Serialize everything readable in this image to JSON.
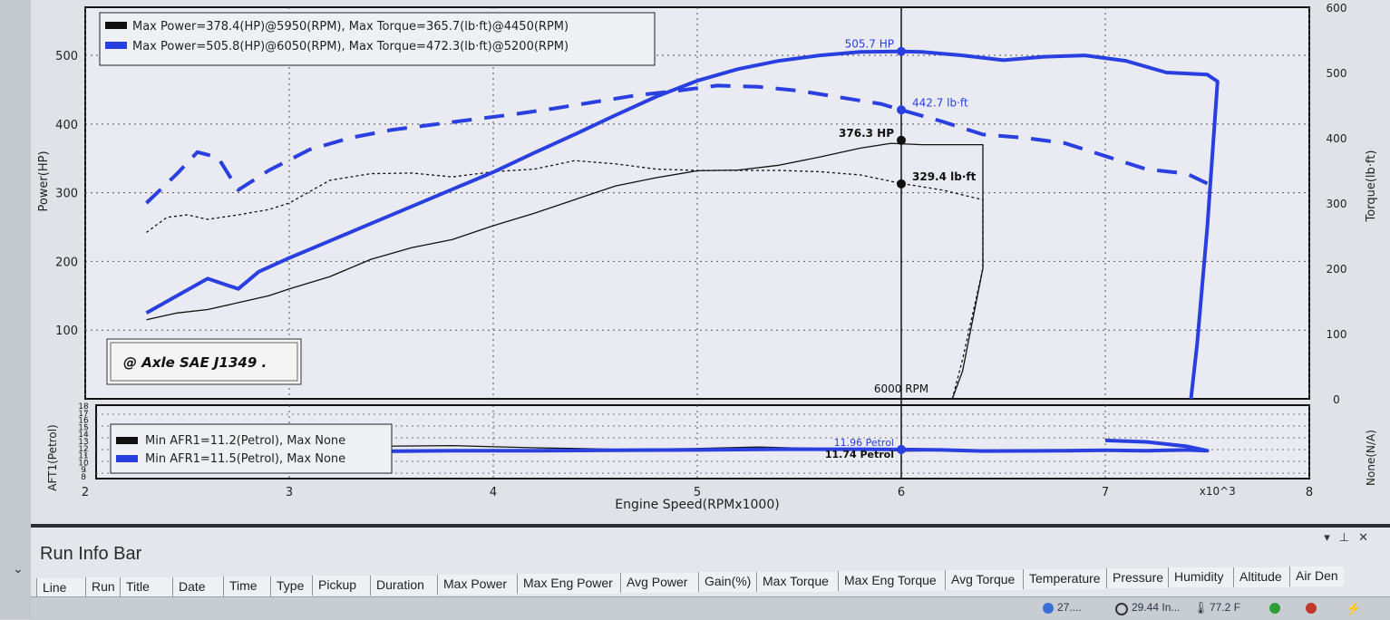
{
  "chart_data": {
    "type": "line",
    "xlabel": "Engine Speed(RPMx1000)",
    "x_multiplier_label": "x10^3",
    "xlim": [
      2,
      8
    ],
    "x_ticks": [
      "2",
      "3",
      "4",
      "5",
      "6",
      "7",
      "8"
    ],
    "main": {
      "ylabel_left": "Power(HP)",
      "ylabel_right": "Torque(lb·ft)",
      "ylim_left": [
        0,
        570
      ],
      "ylim_right": [
        0,
        600
      ],
      "yticks_left": [
        100,
        200,
        300,
        400,
        500
      ],
      "yticks_right": [
        0,
        100,
        200,
        300,
        400,
        500,
        600
      ],
      "legend": [
        {
          "text": "Max Power=378.4(HP)@5950(RPM), Max Torque=365.7(lb·ft)@4450(RPM)",
          "color": "#111111"
        },
        {
          "text": "Max Power=505.8(HP)@6050(RPM), Max Torque=472.3(lb·ft)@5200(RPM)",
          "color": "#2a3fe0"
        }
      ],
      "stamp": "@ Axle SAE J1349  .",
      "cursor_rpm": 6.0,
      "cursor_label": "6000 RPM",
      "annotations": [
        {
          "text": "505.7 HP",
          "color": "#2a3fe0"
        },
        {
          "text": "442.7 lb·ft",
          "color": "#2a3fe0"
        },
        {
          "text": "376.3 HP",
          "color": "#111111"
        },
        {
          "text": "329.4 lb·ft",
          "color": "#111111"
        }
      ],
      "series": [
        {
          "color": "#111111",
          "style": "solid",
          "axis": "left",
          "x": [
            2.3,
            2.45,
            2.6,
            2.75,
            2.9,
            3.0,
            3.2,
            3.4,
            3.6,
            3.8,
            4.0,
            4.2,
            4.4,
            4.6,
            4.8,
            5.0,
            5.2,
            5.4,
            5.6,
            5.8,
            5.95,
            6.1,
            6.3,
            6.4,
            6.4,
            6.3,
            6.25
          ],
          "y": [
            115,
            125,
            130,
            140,
            150,
            160,
            178,
            203,
            220,
            232,
            252,
            270,
            290,
            310,
            322,
            332,
            333,
            340,
            352,
            365,
            372,
            370,
            370,
            370,
            190,
            40,
            0
          ]
        },
        {
          "color": "#111111",
          "style": "dotted",
          "axis": "right",
          "x": [
            2.3,
            2.4,
            2.5,
            2.6,
            2.75,
            2.9,
            3.0,
            3.2,
            3.4,
            3.6,
            3.8,
            4.0,
            4.2,
            4.4,
            4.6,
            4.8,
            5.0,
            5.2,
            5.4,
            5.6,
            5.8,
            6.0,
            6.2,
            6.4,
            6.4,
            6.3,
            6.25
          ],
          "y": [
            255,
            278,
            282,
            275,
            282,
            290,
            300,
            335,
            345,
            346,
            340,
            348,
            352,
            365,
            360,
            352,
            350,
            350,
            350,
            348,
            343,
            330,
            320,
            305,
            200,
            60,
            0
          ]
        },
        {
          "color": "#2a3fe0",
          "style": "solid",
          "axis": "left",
          "x": [
            2.3,
            2.45,
            2.6,
            2.75,
            2.85,
            3.0,
            3.2,
            3.4,
            3.6,
            3.8,
            4.0,
            4.2,
            4.4,
            4.6,
            4.8,
            5.0,
            5.2,
            5.4,
            5.6,
            5.8,
            6.0,
            6.1,
            6.3,
            6.5,
            6.7,
            6.9,
            7.1,
            7.3,
            7.5,
            7.55,
            7.5,
            7.45,
            7.42
          ],
          "y": [
            125,
            150,
            175,
            160,
            185,
            205,
            230,
            255,
            280,
            305,
            330,
            358,
            385,
            413,
            440,
            463,
            480,
            492,
            500,
            505,
            505.7,
            505,
            500,
            493,
            498,
            500,
            492,
            475,
            472,
            462,
            250,
            80,
            0
          ]
        },
        {
          "color": "#2a3fe0",
          "style": "dashed",
          "axis": "right",
          "x": [
            2.3,
            2.45,
            2.55,
            2.65,
            2.75,
            2.9,
            3.1,
            3.3,
            3.5,
            3.7,
            3.9,
            4.1,
            4.3,
            4.5,
            4.7,
            4.9,
            5.1,
            5.3,
            5.5,
            5.7,
            5.9,
            6.0,
            6.2,
            6.4,
            6.6,
            6.8,
            7.0,
            7.2,
            7.4,
            7.5
          ],
          "y": [
            300,
            345,
            378,
            370,
            320,
            350,
            382,
            400,
            412,
            420,
            428,
            436,
            445,
            455,
            465,
            472,
            480,
            478,
            472,
            462,
            452,
            442.7,
            425,
            405,
            400,
            392,
            372,
            352,
            345,
            330
          ]
        }
      ]
    },
    "afr": {
      "ylabel_left": "AFT1(Petrol)",
      "ylabel_right": "None(N/A)",
      "yticks_left": [
        "8",
        "9",
        "10",
        "11",
        "12",
        "13",
        "14",
        "15",
        "16",
        "17",
        "18"
      ],
      "legend": [
        {
          "text": "Min AFR1=11.2(Petrol), Max None",
          "color": "#111111"
        },
        {
          "text": "Min AFR1=11.5(Petrol), Max None",
          "color": "#2a3fe0"
        }
      ],
      "annotations": [
        {
          "text": "11.96 Petrol",
          "color": "#2a3fe0"
        },
        {
          "text": "11.74 Petrol",
          "color": "#111111"
        }
      ],
      "series": [
        {
          "color": "#111111",
          "style": "solid",
          "x": [
            2.3,
            2.6,
            3.0,
            3.4,
            3.8,
            4.2,
            4.6,
            5.0,
            5.3,
            5.6,
            5.9,
            6.0,
            6.2,
            6.4
          ],
          "y": [
            11.8,
            11.6,
            11.9,
            12.4,
            12.5,
            12.2,
            12.0,
            12.1,
            12.3,
            12.1,
            11.9,
            11.74,
            11.8,
            11.7
          ]
        },
        {
          "color": "#2a3fe0",
          "style": "solid",
          "x": [
            2.3,
            2.6,
            3.0,
            3.4,
            3.8,
            4.2,
            4.6,
            5.0,
            5.4,
            5.8,
            6.0,
            6.2,
            6.4,
            6.8,
            7.0,
            7.2,
            7.4,
            7.5,
            7.4,
            7.2,
            7.0
          ],
          "y": [
            11.4,
            11.5,
            11.6,
            11.7,
            11.8,
            11.8,
            11.85,
            11.9,
            12.0,
            12.0,
            11.96,
            11.9,
            11.75,
            11.8,
            11.85,
            11.8,
            11.9,
            11.8,
            12.4,
            13.0,
            13.2
          ]
        }
      ]
    }
  },
  "run_info": {
    "title": "Run Info Bar",
    "columns": [
      "Line",
      "Run",
      "Title",
      "Date",
      "Time",
      "Type",
      "Pickup",
      "Duration",
      "Max Power",
      "Max Eng Power",
      "Avg Power",
      "Gain(%)",
      "Max Torque",
      "Max Eng Torque",
      "Avg Torque",
      "Temperature",
      "Pressure",
      "Humidity",
      "Altitude",
      "Air Den"
    ]
  },
  "status": {
    "item1": "27....",
    "pressure": "29.44 In...",
    "temperature": "77.2 F"
  }
}
